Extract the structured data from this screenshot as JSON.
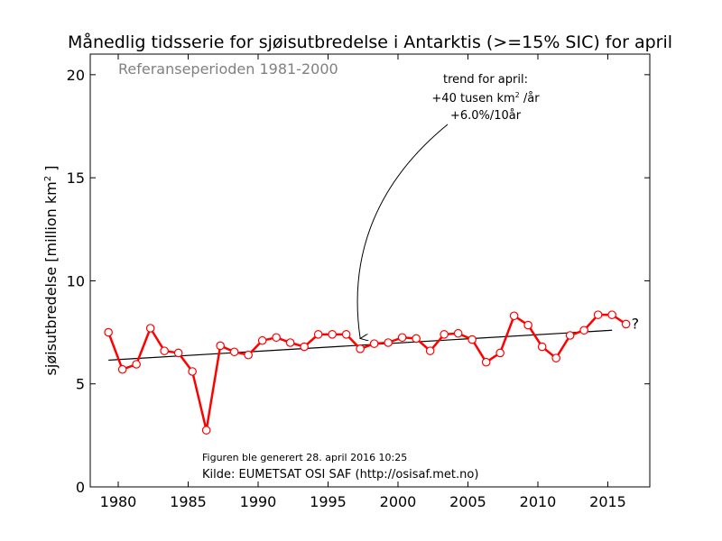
{
  "chart_data": {
    "type": "line",
    "title": "Månedlig tidsserie for sjøisutbredelse i Antarktis (>=15% SIC) for april",
    "ylabel_prefix": "sjøisutbredelse [million km",
    "ylabel_sup": "2",
    "ylabel_suffix": " ]",
    "xlabel": "",
    "xlim": [
      1978,
      2018
    ],
    "ylim": [
      0,
      21
    ],
    "xticks": [
      1980,
      1985,
      1990,
      1995,
      2000,
      2005,
      2010,
      2015
    ],
    "yticks": [
      0,
      5,
      10,
      15,
      20
    ],
    "reference_period": "Referanseperioden 1981-2000",
    "trend_annotation": {
      "line1": "trend for april:",
      "line2_prefix": "+40 tusen km",
      "line2_sup": "2",
      "line2_suffix": " /år",
      "line3": "+6.0%/10år",
      "arrow_target": [
        1997.3,
        6.85
      ]
    },
    "trend_line": {
      "x": [
        1979.3,
        2015.3
      ],
      "y": [
        6.15,
        7.6
      ]
    },
    "series": [
      {
        "color": "#ff0000",
        "x": [
          1979.3,
          1980.3,
          1981.3,
          1982.3,
          1983.3,
          1984.3,
          1985.3,
          1986.3,
          1987.3,
          1988.3,
          1989.3,
          1990.3,
          1991.3,
          1992.3,
          1993.3,
          1994.3,
          1995.3,
          1996.3,
          1997.3,
          1998.3,
          1999.3,
          2000.3,
          2001.3,
          2002.3,
          2003.3,
          2004.3,
          2005.3,
          2006.3,
          2007.3,
          2008.3,
          2009.3,
          2010.3,
          2011.3,
          2012.3,
          2013.3,
          2014.3,
          2015.3,
          2016.3
        ],
        "values": [
          7.5,
          5.7,
          5.95,
          7.7,
          6.6,
          6.5,
          5.6,
          2.75,
          6.85,
          6.55,
          6.4,
          7.1,
          7.25,
          7.0,
          6.8,
          7.4,
          7.4,
          7.4,
          6.7,
          6.95,
          7.0,
          7.25,
          7.2,
          6.6,
          7.4,
          7.45,
          7.15,
          6.05,
          6.5,
          8.3,
          7.85,
          6.8,
          6.25,
          7.35,
          7.6,
          8.35,
          8.35,
          7.9
        ]
      }
    ],
    "question_mark": "?",
    "generated": "Figuren ble generert 28. april 2016 10:25",
    "source": "Kilde: EUMETSAT OSI SAF (http://osisaf.met.no)",
    "grid": false
  }
}
